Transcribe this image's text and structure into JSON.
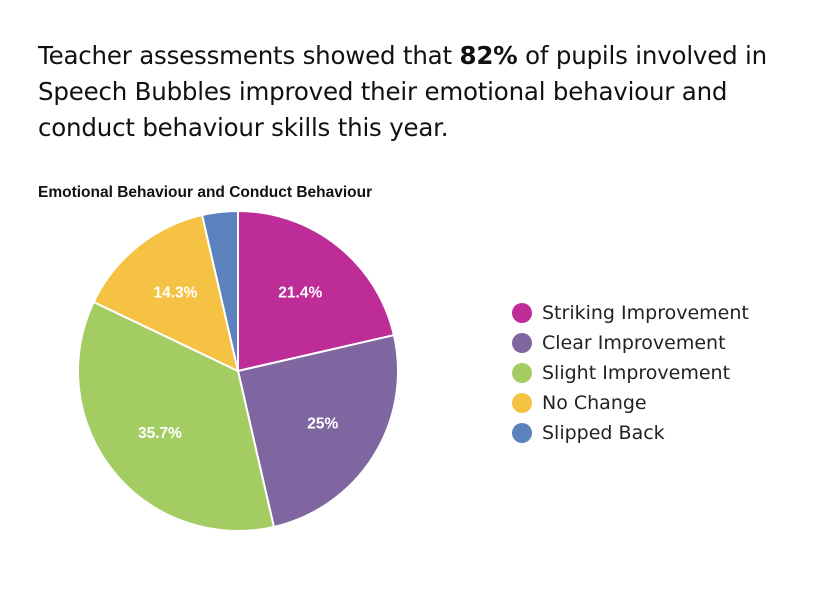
{
  "headline": {
    "before": "Teacher assessments showed that ",
    "highlight": "82%",
    "after": " of pupils involved in Speech Bubbles improved their emotional behaviour and conduct behaviour skills this year."
  },
  "chart_data": {
    "type": "pie",
    "title": "Emotional Behaviour and Conduct Behaviour",
    "legend_position": "right",
    "slices": [
      {
        "name": "Striking Improvement",
        "value": 21.4,
        "label": "21.4%",
        "color": "#be2c98"
      },
      {
        "name": "Clear Improvement",
        "value": 25,
        "label": "25%",
        "color": "#7f66a0"
      },
      {
        "name": "Slight Improvement",
        "value": 35.7,
        "label": "35.7%",
        "color": "#a3cd63"
      },
      {
        "name": "No Change",
        "value": 14.3,
        "label": "14.3%",
        "color": "#f6c244"
      },
      {
        "name": "Slipped Back",
        "value": 3.6,
        "label": "",
        "color": "#5b82bd"
      }
    ]
  }
}
